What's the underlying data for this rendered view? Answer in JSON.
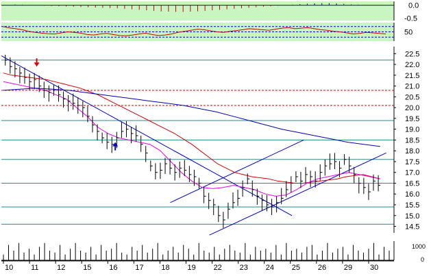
{
  "chart_data": [
    {
      "type": "bar",
      "panel": "oscillator-histogram",
      "ylim": [
        -0.6,
        0.15
      ],
      "y_ticks": [
        "0.0",
        "-0.5"
      ],
      "grid": true,
      "values": [
        0.03,
        0.02,
        0.01,
        -0.01,
        -0.02,
        -0.03,
        -0.04,
        -0.05,
        -0.06,
        -0.07,
        -0.08,
        -0.09,
        -0.1,
        -0.11,
        -0.12,
        -0.14,
        -0.16,
        -0.18,
        -0.2,
        -0.22,
        -0.24,
        -0.25,
        -0.26,
        -0.26,
        -0.25,
        -0.24,
        -0.22,
        -0.2,
        -0.18,
        -0.16,
        -0.14,
        -0.12,
        -0.1,
        -0.08,
        -0.06,
        -0.04,
        -0.02,
        0.0,
        0.02,
        0.04,
        0.06,
        0.07,
        0.08,
        0.08,
        0.07,
        0.05,
        0.03,
        0.02,
        0.01,
        0.0
      ]
    },
    {
      "type": "line",
      "panel": "rsi",
      "ylim": [
        15,
        85
      ],
      "y_ticks": [
        "50"
      ],
      "grid": true,
      "values": [
        70,
        65,
        62,
        58,
        52,
        48,
        45,
        43,
        42,
        46,
        50,
        48,
        45,
        40,
        38,
        42,
        44,
        40,
        36,
        35,
        38,
        42,
        45,
        40,
        36,
        38,
        42,
        48,
        52,
        56,
        60,
        58,
        54,
        50,
        48,
        52,
        55,
        58,
        62,
        60,
        58,
        56,
        60,
        64,
        66,
        62,
        64,
        66,
        62,
        58,
        56,
        52,
        50,
        46,
        42,
        44,
        48,
        46,
        44,
        42
      ]
    },
    {
      "type": "candlestick",
      "panel": "price",
      "ylim": [
        14.2,
        22.7
      ],
      "y_ticks": [
        "22.5",
        "22.0",
        "21.5",
        "21.0",
        "20.5",
        "20.0",
        "19.5",
        "19.0",
        "18.5",
        "18.0",
        "17.5",
        "17.0",
        "16.5",
        "16.0",
        "15.5",
        "15.0",
        "14.5"
      ],
      "x_ticks": [
        "10",
        "11",
        "12",
        "15",
        "16",
        "17",
        "18",
        "19",
        "22",
        "23",
        "24",
        "25",
        "26",
        "29",
        "30"
      ],
      "dashed_levels": [
        20.8,
        20.1
      ],
      "hlines": [
        22.2,
        19.4,
        18.5,
        17.6,
        16.5,
        15.4,
        14.6
      ],
      "close": [
        22.2,
        21.9,
        21.8,
        21.6,
        21.4,
        21.2,
        21.3,
        21.0,
        20.8,
        20.7,
        20.8,
        20.6,
        20.4,
        20.3,
        20.2,
        20.1,
        20.0,
        19.6,
        19.2,
        18.9,
        18.6,
        18.4,
        18.3,
        18.6,
        18.9,
        19.0,
        18.8,
        18.7,
        18.3,
        17.9,
        17.3,
        17.0,
        17.1,
        17.4,
        17.2,
        17.0,
        17.2,
        17.1,
        16.9,
        16.8,
        16.5,
        15.9,
        15.7,
        15.5,
        15.0,
        14.8,
        15.3,
        15.6,
        15.8,
        16.3,
        16.7,
        16.2,
        15.9,
        15.7,
        15.5,
        15.4,
        15.6,
        15.8,
        16.2,
        16.5,
        16.8,
        16.6,
        16.9,
        16.8,
        16.6,
        17.0,
        17.3,
        17.4,
        17.5,
        17.2,
        17.6,
        17.3,
        16.9,
        16.5,
        16.3,
        16.1,
        16.6,
        16.4
      ],
      "overlays": [
        {
          "values": [
            21.6,
            21.5,
            21.45,
            21.4,
            21.35,
            21.3,
            21.2,
            21.1,
            21.0,
            20.9,
            20.75,
            20.6,
            20.4,
            20.2,
            20.0,
            19.8,
            19.6,
            19.4,
            19.2,
            19.0,
            18.8,
            18.55,
            18.3,
            18.0,
            17.7,
            17.4,
            17.2,
            17.0,
            16.9,
            16.8,
            16.75,
            16.7,
            16.6,
            16.55,
            16.5,
            16.5,
            16.55,
            16.6,
            16.65,
            16.7,
            16.8,
            16.85,
            16.9,
            16.8,
            16.7
          ],
          "color": "#dd0000"
        },
        {
          "values": [
            21.2,
            21.1,
            21.0,
            20.9,
            20.8,
            20.6,
            20.4,
            20.0,
            19.6,
            19.1,
            18.8,
            18.6,
            18.5,
            18.4,
            18.3,
            18.0,
            17.5,
            17.0,
            16.6,
            16.3,
            16.25,
            16.3,
            16.4,
            16.3,
            16.2,
            16.0,
            15.9,
            15.95,
            16.2,
            16.5,
            16.7,
            16.8,
            16.9,
            17.0,
            16.9,
            16.8,
            16.7
          ],
          "color": "#ee00ee"
        },
        {
          "values": [
            20.8,
            20.85,
            20.9,
            20.85,
            20.8,
            20.7,
            20.6,
            20.5,
            20.4,
            20.3,
            20.2,
            20.1,
            19.95,
            19.8,
            19.6,
            19.4,
            19.2,
            19.0,
            18.85,
            18.7,
            18.55,
            18.4,
            18.3,
            18.2
          ],
          "color": "#0000bb"
        }
      ],
      "trendlines": [
        {
          "from": [
            0.0,
            22.4
          ],
          "to": [
            0.74,
            15.0
          ],
          "color": "#0000cc"
        },
        {
          "from": [
            0.43,
            15.6
          ],
          "to": [
            0.77,
            18.5
          ],
          "color": "#0000cc"
        },
        {
          "from": [
            0.53,
            14.1
          ],
          "to": [
            0.98,
            17.9
          ],
          "color": "#0000cc"
        }
      ],
      "markers": [
        {
          "at": 0.09,
          "value": 21.9,
          "direction": "down",
          "color": "#dd0000"
        },
        {
          "at": 0.29,
          "value": 18.4,
          "direction": "up",
          "color": "#0000cc"
        }
      ]
    },
    {
      "type": "bar",
      "panel": "volume",
      "y_ticks": [
        "1000",
        "0"
      ],
      "values": [
        0.3,
        0.8,
        0.5,
        0.9,
        0.4,
        0.6,
        0.3,
        0.7,
        0.9,
        0.5,
        0.4,
        0.8,
        0.3,
        0.6,
        0.9,
        0.5,
        0.4,
        0.7,
        0.3,
        0.8,
        0.5,
        0.6,
        0.9,
        0.4,
        0.3,
        0.7,
        0.5,
        0.8,
        0.4,
        0.6,
        0.9,
        0.3,
        0.5,
        0.7,
        0.4,
        0.8,
        0.6,
        0.3,
        0.9,
        0.5,
        0.4,
        0.7,
        0.3,
        0.6,
        0.8,
        0.5,
        0.4,
        0.9,
        0.3,
        0.7,
        0.5,
        0.6,
        0.4,
        0.8,
        0.3,
        0.9,
        0.5,
        0.6,
        0.4,
        0.7,
        0.8,
        0.3,
        0.5,
        0.9,
        0.4,
        0.6,
        0.7,
        0.3,
        0.8,
        0.5,
        0.4,
        0.6,
        0.9,
        0.3,
        0.7,
        0.5
      ]
    }
  ]
}
